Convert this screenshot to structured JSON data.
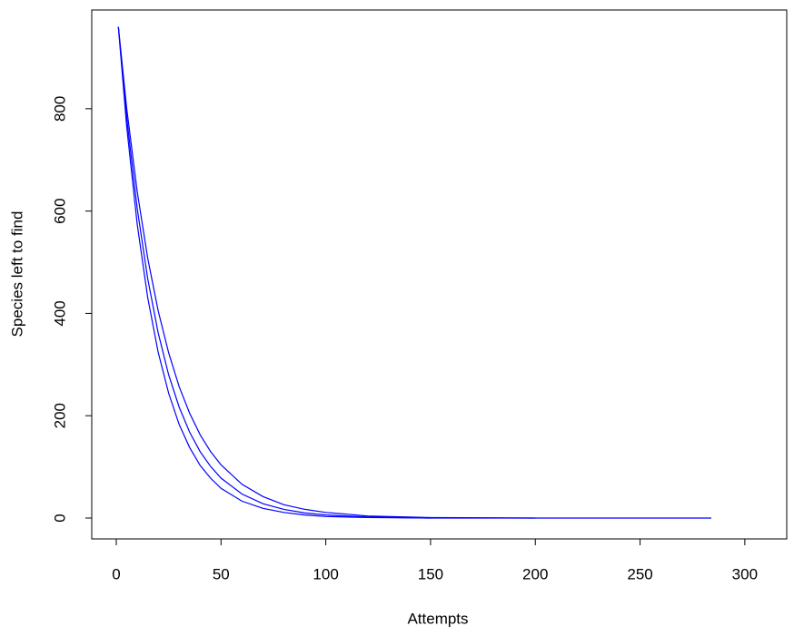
{
  "chart_data": {
    "type": "line",
    "x_label": "Attempts",
    "y_label": "Species left to find",
    "xlim": [
      -11.7,
      320
    ],
    "ylim": [
      -40.8,
      993
    ],
    "xticks": [
      0,
      50,
      100,
      150,
      200,
      250,
      300
    ],
    "yticks": [
      0,
      200,
      400,
      600,
      800
    ],
    "series": [
      {
        "color": "#0000ff",
        "x": [
          1,
          5,
          10,
          15,
          20,
          25,
          30,
          35,
          40,
          45,
          50,
          60,
          70,
          80,
          90,
          100,
          120,
          150
        ],
        "values": [
          960,
          764,
          574,
          431,
          324,
          244,
          183,
          138,
          103,
          78,
          58,
          33,
          19,
          11,
          6,
          3,
          1,
          0
        ]
      },
      {
        "color": "#0000ff",
        "x": [
          1,
          5,
          10,
          15,
          20,
          25,
          30,
          35,
          40,
          45,
          50,
          60,
          70,
          80,
          90,
          100,
          120,
          150,
          200,
          284
        ],
        "values": [
          960,
          782,
          605,
          468,
          362,
          280,
          217,
          168,
          130,
          101,
          78,
          47,
          28,
          17,
          10,
          6,
          2,
          0,
          0,
          0
        ]
      },
      {
        "color": "#0000ff",
        "x": [
          1,
          5,
          10,
          15,
          20,
          25,
          30,
          35,
          40,
          45,
          50,
          60,
          70,
          80,
          90,
          100,
          120,
          150,
          200
        ],
        "values": [
          960,
          800,
          638,
          508,
          405,
          323,
          257,
          205,
          163,
          130,
          104,
          66,
          42,
          26,
          17,
          11,
          4,
          1,
          0
        ]
      }
    ]
  }
}
